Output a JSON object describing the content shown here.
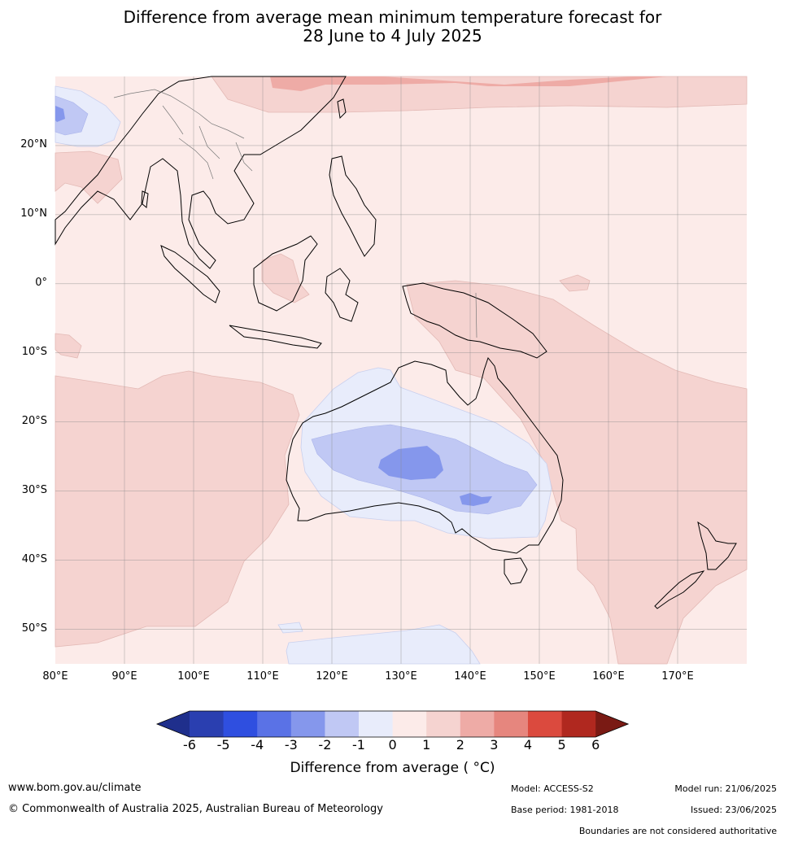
{
  "title": {
    "line1": "Difference from average mean minimum temperature forecast for",
    "line2": "28 June to 4 July 2025"
  },
  "map": {
    "lon_range": [
      80,
      180
    ],
    "lat_range": [
      -55,
      30
    ],
    "lat_labels": [
      "20°N",
      "10°N",
      "0°",
      "10°S",
      "20°S",
      "30°S",
      "40°S",
      "50°S"
    ],
    "lon_labels": [
      "80°E",
      "90°E",
      "100°E",
      "110°E",
      "120°E",
      "130°E",
      "140°E",
      "150°E",
      "160°E",
      "170°E"
    ]
  },
  "legend": {
    "ticks": [
      "-6",
      "-5",
      "-4",
      "-3",
      "-2",
      "-1",
      "0",
      "1",
      "2",
      "3",
      "4",
      "5",
      "6"
    ],
    "colors": [
      "#1f2f8c",
      "#2a3fb0",
      "#2f4fe0",
      "#5a72e6",
      "#8597ec",
      "#c0c8f4",
      "#e8ecfb",
      "#fcebe9",
      "#f5d3d0",
      "#eeaba6",
      "#e6867e",
      "#db4a3e",
      "#b0281f",
      "#7a1a14"
    ],
    "label": "Difference from average ( °C)"
  },
  "footer": {
    "website": "www.bom.gov.au/climate",
    "copyright": "© Commonwealth of Australia 2025, Australian Bureau of Meteorology",
    "model": "Model: ACCESS-S2",
    "model_run": "Model run: 21/06/2025",
    "base_period": "Base period: 1981-2018",
    "issued": "Issued: 23/06/2025",
    "disclaimer": "Boundaries are not considered authoritative"
  }
}
